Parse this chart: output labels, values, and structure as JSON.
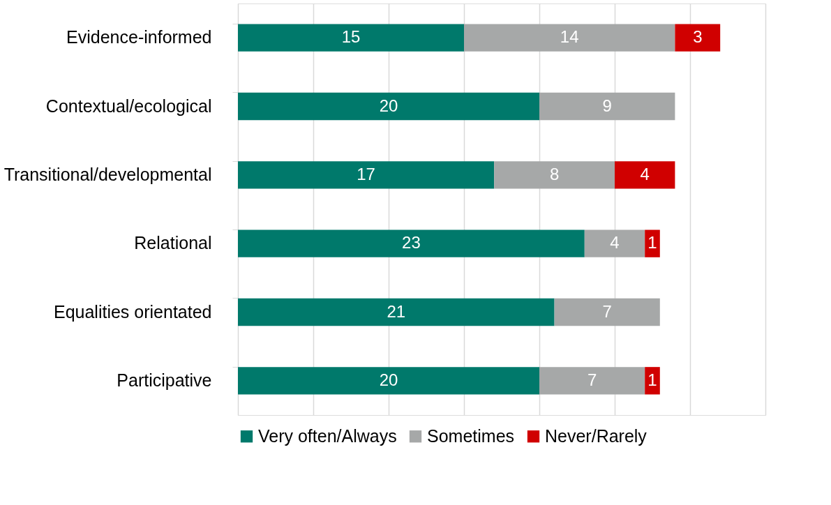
{
  "chart_data": {
    "type": "bar",
    "orientation": "horizontal",
    "stacked": true,
    "categories": [
      "Evidence-informed",
      "Contextual/ecological",
      "Transitional/developmental",
      "Relational",
      "Equalities orientated",
      "Participative"
    ],
    "series": [
      {
        "name": "Very often/Always",
        "color": "#00796b",
        "values": [
          15,
          20,
          17,
          23,
          21,
          20
        ]
      },
      {
        "name": "Sometimes",
        "color": "#a6a8a8",
        "values": [
          14,
          9,
          8,
          4,
          7,
          7
        ]
      },
      {
        "name": "Never/Rarely",
        "color": "#d00000",
        "values": [
          3,
          null,
          4,
          1,
          null,
          1
        ]
      }
    ],
    "xlim": [
      0,
      35
    ],
    "xticks": [
      {
        "value": 0,
        "label": null
      },
      {
        "value": 5,
        "label": null
      },
      {
        "value": 10,
        "label": null
      },
      {
        "value": 15,
        "label": null
      },
      {
        "value": 20,
        "label": null
      },
      {
        "value": 25,
        "label": null
      },
      {
        "value": 30,
        "label": null
      },
      {
        "value": 35,
        "label": null
      }
    ],
    "grid": "x",
    "tick_labels": "y",
    "legend": "bottom",
    "data_labels": true
  }
}
